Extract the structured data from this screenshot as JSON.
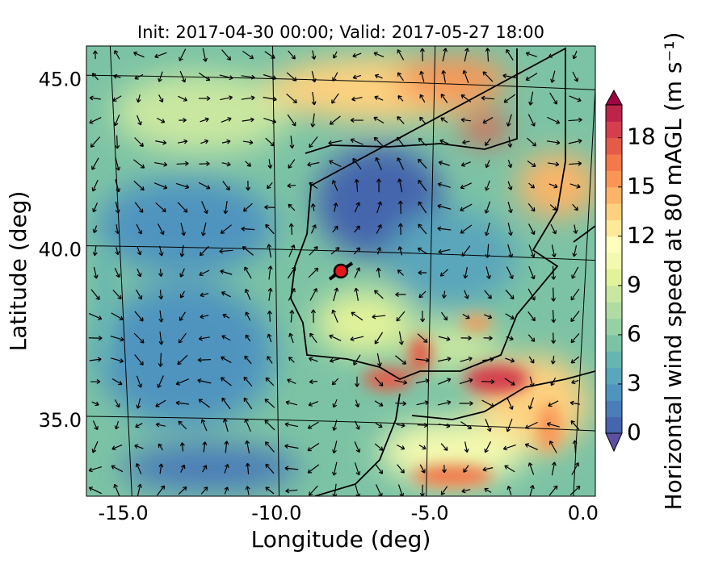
{
  "chart_data": {
    "type": "map",
    "title": "Init: 2017-04-30 00:00; Valid: 2017-05-27 18:00",
    "x_label": "Longitude (deg)",
    "y_label": "Latitude (deg)",
    "xlim": [
      -16.2,
      0.4
    ],
    "ylim": [
      32.8,
      46.0
    ],
    "xticks": [
      {
        "value": -15,
        "label": "-15.0"
      },
      {
        "value": -10,
        "label": "-10.0"
      },
      {
        "value": -5,
        "label": "-5.0"
      },
      {
        "value": 0,
        "label": "0.0"
      }
    ],
    "yticks": [
      {
        "value": 35,
        "label": "35.0"
      },
      {
        "value": 40,
        "label": "40.0"
      },
      {
        "value": 45,
        "label": "45.0"
      }
    ],
    "colorbar": {
      "label": "Horizontal wind speed at 80 mAGL (m s⁻¹)",
      "clim": [
        0,
        20
      ],
      "ticks": [
        0,
        3,
        6,
        9,
        12,
        15,
        18
      ],
      "colors": [
        "#4565ad",
        "#4b7db8",
        "#4f94bf",
        "#5aa6bb",
        "#66b5b0",
        "#7cc3a5",
        "#95d1a3",
        "#b0dba2",
        "#c9e7a0",
        "#e2f29a",
        "#f3f9ae",
        "#fefebd",
        "#fee89a",
        "#fdd17f",
        "#fcb468",
        "#f99656",
        "#f3794b",
        "#e45b48",
        "#d43f4e",
        "#bd2449"
      ],
      "under_color": "#5e4fa2",
      "over_color": "#9e0142"
    }
  }
}
